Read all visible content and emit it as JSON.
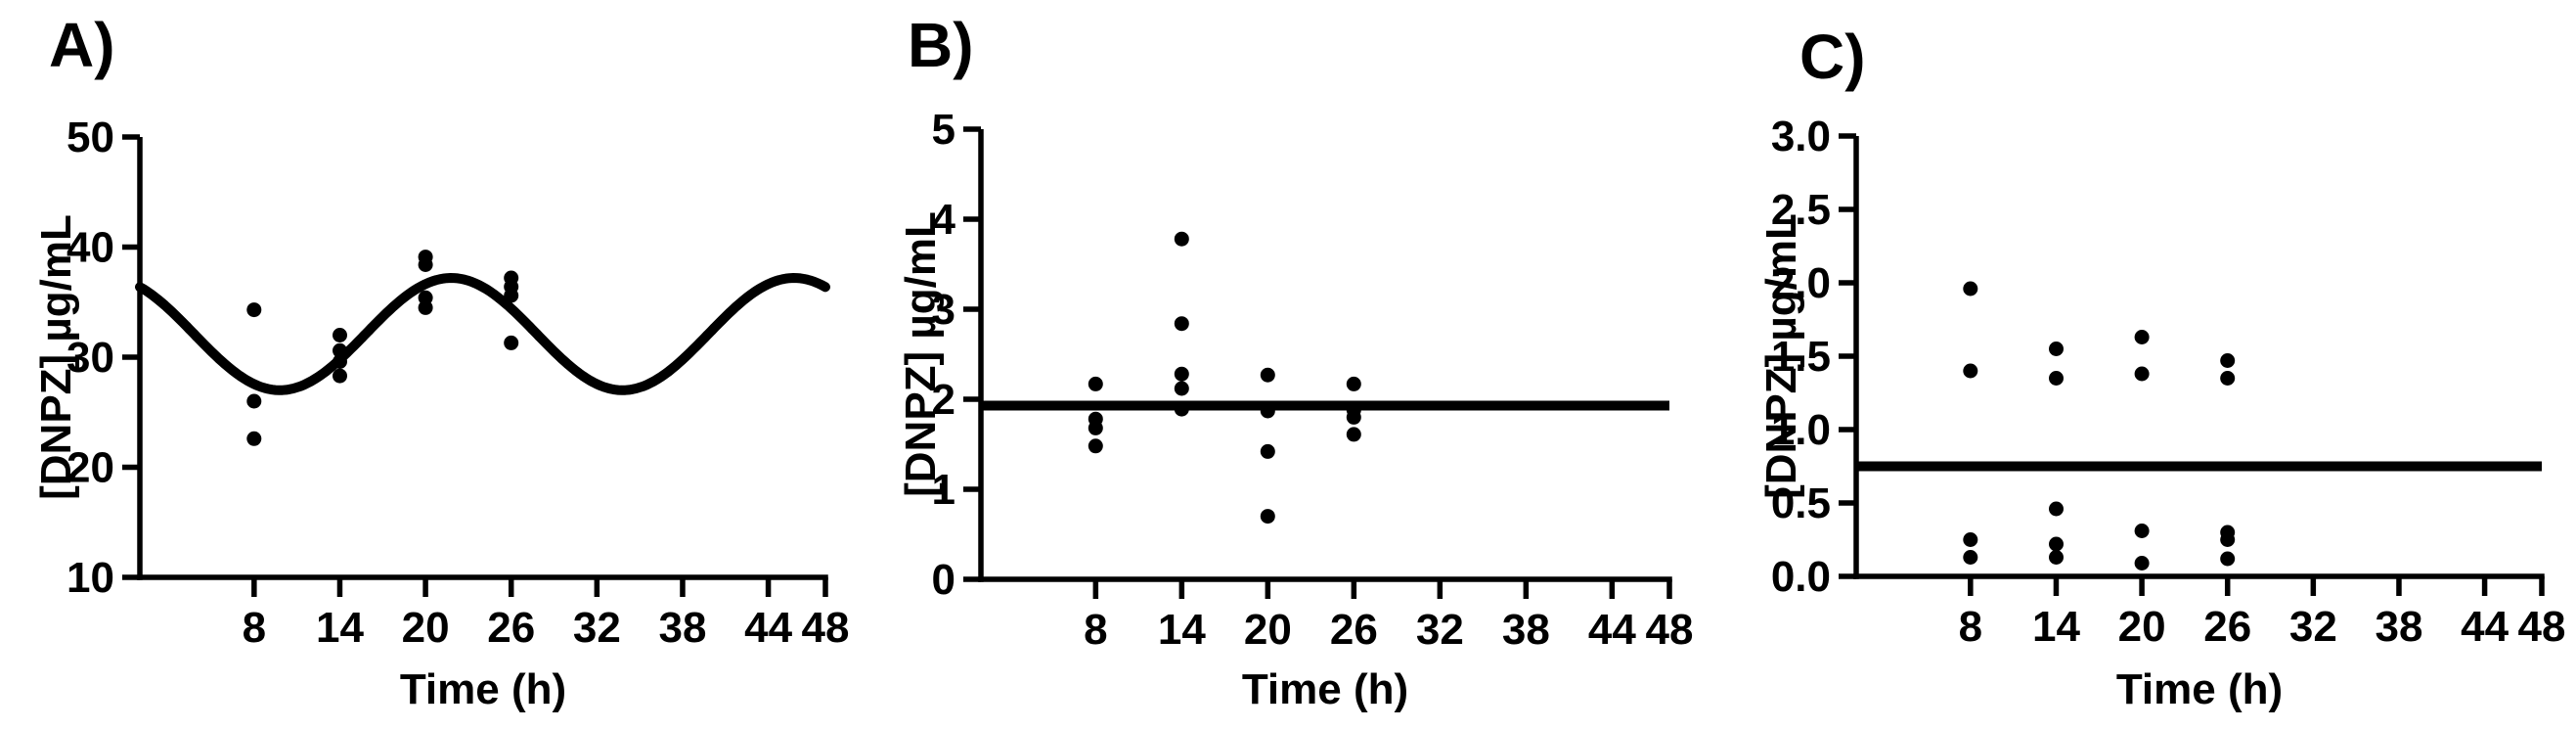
{
  "figure": {
    "background": "#ffffff",
    "ink": "#000000",
    "description_visible_panels": [
      "A)",
      "B)",
      "C)"
    ]
  },
  "chart_data": [
    {
      "panel": "A)",
      "type": "scatter",
      "xlabel": "Time (h)",
      "ylabel": "[DNPZ] µg/mL",
      "xlim": [
        0,
        48
      ],
      "x_ticks": [
        8,
        14,
        20,
        26,
        32,
        38,
        44,
        48
      ],
      "ylim": [
        10,
        50
      ],
      "y_ticks": [
        "10",
        "20",
        "30",
        "40",
        "50"
      ],
      "grid": "off",
      "legend": "none",
      "fit_curve": {
        "type": "cosine",
        "mesor": 32.1,
        "amplitude": 5.1,
        "period_h": 24,
        "peak_time_h": 21.8
      },
      "points": [
        {
          "x": 8,
          "y": 34.3
        },
        {
          "x": 8,
          "y": 26.0
        },
        {
          "x": 8,
          "y": 22.6
        },
        {
          "x": 14,
          "y": 32.0
        },
        {
          "x": 14,
          "y": 30.6
        },
        {
          "x": 14,
          "y": 29.6
        },
        {
          "x": 14,
          "y": 28.3
        },
        {
          "x": 20,
          "y": 39.1
        },
        {
          "x": 20,
          "y": 38.4
        },
        {
          "x": 20,
          "y": 35.4
        },
        {
          "x": 20,
          "y": 34.5
        },
        {
          "x": 26,
          "y": 37.2
        },
        {
          "x": 26,
          "y": 36.4
        },
        {
          "x": 26,
          "y": 35.6
        },
        {
          "x": 26,
          "y": 31.3
        }
      ]
    },
    {
      "panel": "B)",
      "type": "scatter",
      "xlabel": "Time (h)",
      "ylabel": "[DNPZ] µg/mL",
      "xlim": [
        0,
        48
      ],
      "x_ticks": [
        8,
        14,
        20,
        26,
        32,
        38,
        44,
        48
      ],
      "ylim": [
        0,
        5
      ],
      "y_ticks": [
        "0",
        "1",
        "2",
        "3",
        "4",
        "5"
      ],
      "grid": "off",
      "legend": "none",
      "reference_line_y": 1.93,
      "points": [
        {
          "x": 8,
          "y": 2.17
        },
        {
          "x": 8,
          "y": 1.78
        },
        {
          "x": 8,
          "y": 1.68
        },
        {
          "x": 8,
          "y": 1.48
        },
        {
          "x": 14,
          "y": 3.78
        },
        {
          "x": 14,
          "y": 2.84
        },
        {
          "x": 14,
          "y": 2.28
        },
        {
          "x": 14,
          "y": 2.12
        },
        {
          "x": 14,
          "y": 1.89
        },
        {
          "x": 20,
          "y": 2.27
        },
        {
          "x": 20,
          "y": 1.87
        },
        {
          "x": 20,
          "y": 1.42
        },
        {
          "x": 20,
          "y": 0.7
        },
        {
          "x": 26,
          "y": 2.17
        },
        {
          "x": 26,
          "y": 1.88
        },
        {
          "x": 26,
          "y": 1.8
        },
        {
          "x": 26,
          "y": 1.61
        }
      ]
    },
    {
      "panel": "C)",
      "type": "scatter",
      "xlabel": "Time (h)",
      "ylabel": "[DNPZ] µg/mL",
      "xlim": [
        0,
        48
      ],
      "x_ticks": [
        8,
        14,
        20,
        26,
        32,
        38,
        44,
        48
      ],
      "ylim": [
        0,
        3
      ],
      "y_ticks": [
        "0.0",
        "0.5",
        "1.0",
        "1.5",
        "2.0",
        "2.5",
        "3.0"
      ],
      "grid": "off",
      "legend": "none",
      "reference_line_y": 0.75,
      "points": [
        {
          "x": 8,
          "y": 1.96
        },
        {
          "x": 8,
          "y": 1.4
        },
        {
          "x": 8,
          "y": 0.25
        },
        {
          "x": 8,
          "y": 0.13
        },
        {
          "x": 14,
          "y": 1.55
        },
        {
          "x": 14,
          "y": 1.35
        },
        {
          "x": 14,
          "y": 0.46
        },
        {
          "x": 14,
          "y": 0.22
        },
        {
          "x": 14,
          "y": 0.13
        },
        {
          "x": 20,
          "y": 1.63
        },
        {
          "x": 20,
          "y": 1.38
        },
        {
          "x": 20,
          "y": 0.31
        },
        {
          "x": 20,
          "y": 0.09
        },
        {
          "x": 26,
          "y": 1.47
        },
        {
          "x": 26,
          "y": 1.35
        },
        {
          "x": 26,
          "y": 0.3
        },
        {
          "x": 26,
          "y": 0.25
        },
        {
          "x": 26,
          "y": 0.12
        }
      ]
    }
  ]
}
